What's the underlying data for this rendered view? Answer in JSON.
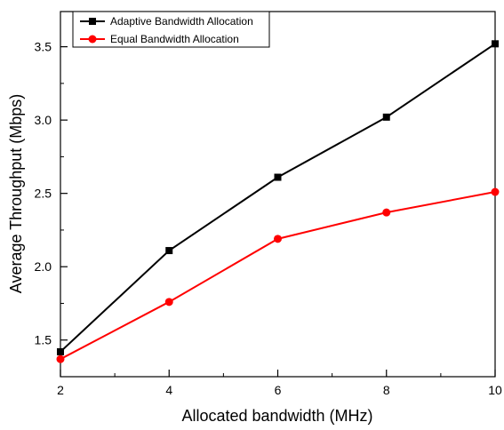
{
  "chart_data": {
    "type": "line",
    "xlabel": "Allocated bandwidth (MHz)",
    "ylabel": "Average Throughput (Mbps)",
    "x": [
      2,
      4,
      6,
      8,
      10
    ],
    "xlim": [
      2,
      10
    ],
    "ylim": [
      1.25,
      3.74
    ],
    "x_ticks": [
      2,
      4,
      6,
      8,
      10
    ],
    "x_minor_ticks": [
      3,
      5,
      7,
      9
    ],
    "y_ticks": [
      1.5,
      2.0,
      2.5,
      3.0,
      3.5
    ],
    "y_tick_labels": [
      "1.5",
      "2.0",
      "2.5",
      "3.0",
      "3.5"
    ],
    "y_minor_ticks": [
      1.75,
      2.25,
      2.75,
      3.25
    ],
    "grid": false,
    "legend_position": "top-left",
    "series": [
      {
        "name": "Adaptive Bandwidth Allocation",
        "values": [
          1.42,
          2.11,
          2.61,
          3.02,
          3.52
        ],
        "color": "#000000",
        "marker": "square"
      },
      {
        "name": "Equal Bandwidth Allocation",
        "values": [
          1.37,
          1.76,
          2.19,
          2.37,
          2.51
        ],
        "color": "#ff0000",
        "marker": "circle"
      }
    ]
  }
}
